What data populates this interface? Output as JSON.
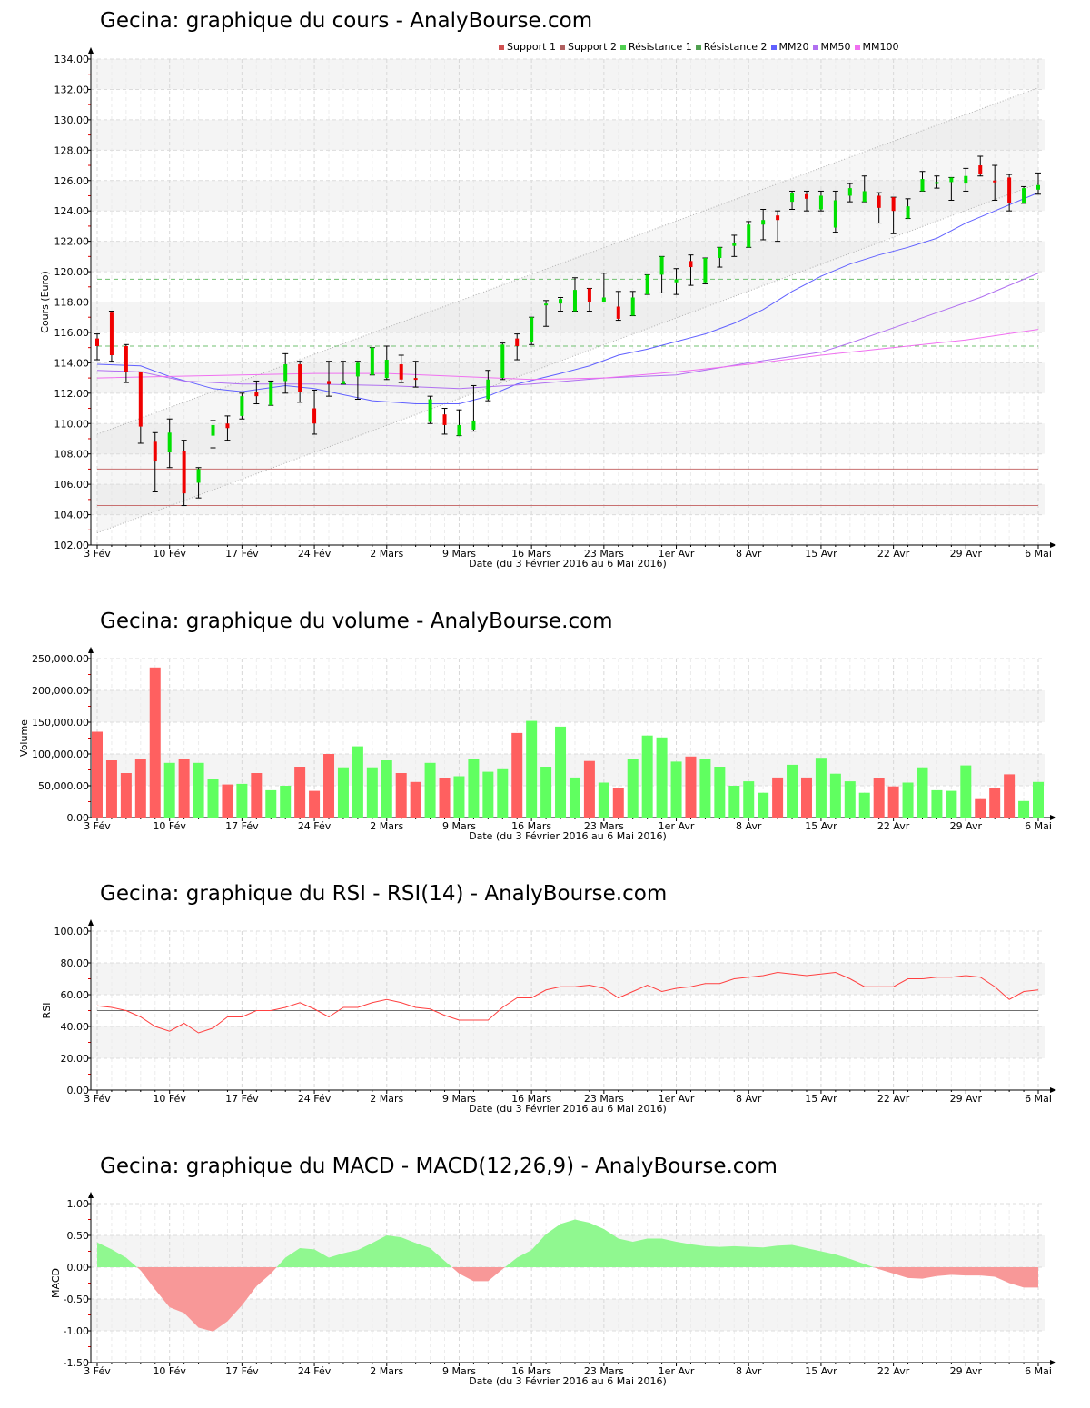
{
  "page": {
    "titles": {
      "price": "Gecina: graphique du cours - AnalyBourse.com",
      "volume": "Gecina: graphique du volume - AnalyBourse.com",
      "rsi": "Gecina: graphique du RSI - RSI(14) - AnalyBourse.com",
      "macd": "Gecina: graphique du MACD - MACD(12,26,9) - AnalyBourse.com"
    },
    "xlabel": "Date (du 3 Février 2016 au 6 Mai 2016)",
    "legend": [
      {
        "label": "Support 1",
        "color": "#d05050"
      },
      {
        "label": "Support 2",
        "color": "#b06060"
      },
      {
        "label": "Résistance 1",
        "color": "#50d050"
      },
      {
        "label": "Résistance 2",
        "color": "#50a050"
      },
      {
        "label": "MM20",
        "color": "#6060ff"
      },
      {
        "label": "MM50",
        "color": "#b070f0"
      },
      {
        "label": "MM100",
        "color": "#f070f0"
      }
    ]
  },
  "chart_data": [
    {
      "type": "candlestick",
      "title": "Gecina: graphique du cours - AnalyBourse.com",
      "xlabel": "Date (du 3 Février 2016 au 6 Mai 2016)",
      "ylabel": "Cours (Euro)",
      "ylim": [
        102,
        134
      ],
      "yticks": [
        "102.00",
        "104.00",
        "106.00",
        "108.00",
        "110.00",
        "112.00",
        "114.00",
        "116.00",
        "118.00",
        "120.00",
        "122.00",
        "124.00",
        "126.00",
        "128.00",
        "130.00",
        "132.00",
        "134.00"
      ],
      "xticks": [
        {
          "label": "3 Fév",
          "bar": 0
        },
        {
          "label": "10 Fév",
          "bar": 5
        },
        {
          "label": "17 Fév",
          "bar": 10
        },
        {
          "label": "24 Fév",
          "bar": 15
        },
        {
          "label": "2 Mars",
          "bar": 20
        },
        {
          "label": "9 Mars",
          "bar": 25
        },
        {
          "label": "16 Mars",
          "bar": 30
        },
        {
          "label": "23 Mars",
          "bar": 35
        },
        {
          "label": "1er Avr",
          "bar": 40
        },
        {
          "label": "8 Avr",
          "bar": 45
        },
        {
          "label": "15 Avr",
          "bar": 50
        },
        {
          "label": "22 Avr",
          "bar": 55
        },
        {
          "label": "29 Avr",
          "bar": 60
        },
        {
          "label": "6 Mai",
          "bar": 65
        }
      ],
      "grid": true,
      "ohlc": [
        [
          115.6,
          115.9,
          114.2,
          115.1
        ],
        [
          117.3,
          117.4,
          114.1,
          114.5
        ],
        [
          115.1,
          115.2,
          112.7,
          113.4
        ],
        [
          113.4,
          113.4,
          108.7,
          109.8
        ],
        [
          108.8,
          109.4,
          105.5,
          107.5
        ],
        [
          108.1,
          110.3,
          107.1,
          109.4
        ],
        [
          108.2,
          108.9,
          104.6,
          105.4
        ],
        [
          106.1,
          107.1,
          105.1,
          107.0
        ],
        [
          109.2,
          110.2,
          108.4,
          109.9
        ],
        [
          110.0,
          110.5,
          108.9,
          109.7
        ],
        [
          110.5,
          112.0,
          110.3,
          111.8
        ],
        [
          112.1,
          112.8,
          111.3,
          111.8
        ],
        [
          111.2,
          112.8,
          111.2,
          112.7
        ],
        [
          112.8,
          114.6,
          112.0,
          113.9
        ],
        [
          113.9,
          114.1,
          111.4,
          112.1
        ],
        [
          111.0,
          112.2,
          109.3,
          110.0
        ],
        [
          112.8,
          114.1,
          111.8,
          112.6
        ],
        [
          112.6,
          114.1,
          112.6,
          112.8
        ],
        [
          113.1,
          114.1,
          111.6,
          114.0
        ],
        [
          113.2,
          115.0,
          113.2,
          115.0
        ],
        [
          113.0,
          115.1,
          112.9,
          114.2
        ],
        [
          113.9,
          114.5,
          112.7,
          112.9
        ],
        [
          113.0,
          114.1,
          112.4,
          112.9
        ],
        [
          110.1,
          111.8,
          110.0,
          111.6
        ],
        [
          110.6,
          111.0,
          109.3,
          109.9
        ],
        [
          109.2,
          110.9,
          109.2,
          109.9
        ],
        [
          109.6,
          112.5,
          109.5,
          110.2
        ],
        [
          111.6,
          113.5,
          111.5,
          112.9
        ],
        [
          113.0,
          115.3,
          112.9,
          115.2
        ],
        [
          115.6,
          115.9,
          114.2,
          115.1
        ],
        [
          115.4,
          117.0,
          115.2,
          117.0
        ],
        [
          117.8,
          118.1,
          116.4,
          117.9
        ],
        [
          117.9,
          118.3,
          117.4,
          118.2
        ],
        [
          117.4,
          119.6,
          117.4,
          118.8
        ],
        [
          118.9,
          118.9,
          117.4,
          118.0
        ],
        [
          118.0,
          119.9,
          118.0,
          118.3
        ],
        [
          117.7,
          118.7,
          116.8,
          116.9
        ],
        [
          117.1,
          118.7,
          117.1,
          118.3
        ],
        [
          118.5,
          119.8,
          118.5,
          119.8
        ],
        [
          119.8,
          121.0,
          118.6,
          121.0
        ],
        [
          119.3,
          120.2,
          118.5,
          119.5
        ],
        [
          120.7,
          121.1,
          119.1,
          120.3
        ],
        [
          119.3,
          120.9,
          119.2,
          120.9
        ],
        [
          120.9,
          121.6,
          120.3,
          121.6
        ],
        [
          121.7,
          122.4,
          121.0,
          121.9
        ],
        [
          121.6,
          123.3,
          121.6,
          123.1
        ],
        [
          123.1,
          124.1,
          122.1,
          123.4
        ],
        [
          123.7,
          124.0,
          122.0,
          123.4
        ],
        [
          124.6,
          125.3,
          124.1,
          125.2
        ],
        [
          125.1,
          125.3,
          124.0,
          124.8
        ],
        [
          124.1,
          125.3,
          124.0,
          125.0
        ],
        [
          122.9,
          125.3,
          122.6,
          124.7
        ],
        [
          125.0,
          125.8,
          124.6,
          125.5
        ],
        [
          124.6,
          126.3,
          124.6,
          125.3
        ],
        [
          125.0,
          125.2,
          123.2,
          124.2
        ],
        [
          124.9,
          124.9,
          122.5,
          124.0
        ],
        [
          123.5,
          124.8,
          123.5,
          124.3
        ],
        [
          125.3,
          126.6,
          125.3,
          126.1
        ],
        [
          125.8,
          126.3,
          125.5,
          125.9
        ],
        [
          125.9,
          126.2,
          124.7,
          126.2
        ],
        [
          125.8,
          126.8,
          125.3,
          126.3
        ],
        [
          127.0,
          127.6,
          126.3,
          126.4
        ],
        [
          126.0,
          127.0,
          124.7,
          125.9
        ],
        [
          126.2,
          126.4,
          124.0,
          124.5
        ],
        [
          124.5,
          125.6,
          124.5,
          125.5
        ],
        [
          125.4,
          126.5,
          125.1,
          125.7
        ]
      ],
      "lines": {
        "support_1": 107.0,
        "support_2": 104.6,
        "resistance_1": 115.1,
        "resistance_2": 119.5
      },
      "channel": {
        "upper": [
          109.3,
          132.1
        ],
        "lower": [
          102.8,
          125.8
        ]
      },
      "series": [
        {
          "name": "MM20",
          "color": "#6060ff",
          "points": [
            [
              0,
              113.9
            ],
            [
              3,
              113.8
            ],
            [
              5,
              113.1
            ],
            [
              8,
              112.3
            ],
            [
              10,
              112.1
            ],
            [
              13,
              112.5
            ],
            [
              15,
              112.3
            ],
            [
              17,
              111.9
            ],
            [
              19,
              111.5
            ],
            [
              22,
              111.3
            ],
            [
              25,
              111.3
            ],
            [
              27,
              111.8
            ],
            [
              29,
              112.6
            ],
            [
              32,
              113.3
            ],
            [
              34,
              113.8
            ],
            [
              36,
              114.5
            ],
            [
              38,
              114.9
            ],
            [
              40,
              115.4
            ],
            [
              42,
              115.9
            ],
            [
              44,
              116.6
            ],
            [
              46,
              117.5
            ],
            [
              48,
              118.7
            ],
            [
              50,
              119.7
            ],
            [
              52,
              120.5
            ],
            [
              54,
              121.1
            ],
            [
              56,
              121.6
            ],
            [
              58,
              122.2
            ],
            [
              60,
              123.2
            ],
            [
              62,
              124.0
            ],
            [
              65,
              125.2
            ]
          ]
        },
        {
          "name": "MM50",
          "color": "#b070f0",
          "points": [
            [
              0,
              113.5
            ],
            [
              3,
              113.4
            ],
            [
              6,
              112.8
            ],
            [
              10,
              112.6
            ],
            [
              15,
              112.6
            ],
            [
              20,
              112.5
            ],
            [
              25,
              112.3
            ],
            [
              30,
              112.6
            ],
            [
              35,
              113.0
            ],
            [
              40,
              113.2
            ],
            [
              45,
              114.0
            ],
            [
              50,
              114.7
            ],
            [
              52,
              115.3
            ],
            [
              55,
              116.3
            ],
            [
              58,
              117.3
            ],
            [
              61,
              118.3
            ],
            [
              65,
              119.9
            ]
          ]
        },
        {
          "name": "MM100",
          "color": "#f070f0",
          "points": [
            [
              0,
              113.0
            ],
            [
              5,
              113.1
            ],
            [
              10,
              113.2
            ],
            [
              15,
              113.3
            ],
            [
              20,
              113.3
            ],
            [
              25,
              113.1
            ],
            [
              30,
              112.9
            ],
            [
              35,
              113.0
            ],
            [
              40,
              113.4
            ],
            [
              45,
              113.9
            ],
            [
              50,
              114.5
            ],
            [
              55,
              115.0
            ],
            [
              60,
              115.5
            ],
            [
              65,
              116.2
            ]
          ]
        }
      ],
      "legend": [
        "Support 1",
        "Support 2",
        "Résistance 1",
        "Résistance 2",
        "MM20",
        "MM50",
        "MM100"
      ]
    },
    {
      "type": "bar",
      "title": "Gecina: graphique du volume - AnalyBourse.com",
      "xlabel": "Date (du 3 Février 2016 au 6 Mai 2016)",
      "ylabel": "Volume",
      "ylim": [
        0,
        250000
      ],
      "yticks": [
        "0.00",
        "50,000.00",
        "100,000.00",
        "150,000.00",
        "200,000.00",
        "250,000.00"
      ],
      "values": [
        135000,
        90000,
        70000,
        92000,
        236000,
        86000,
        92000,
        86000,
        60000,
        52000,
        53000,
        70000,
        43000,
        50000,
        80000,
        42000,
        100000,
        79000,
        112000,
        79000,
        90000,
        70000,
        56000,
        86000,
        62000,
        65000,
        92000,
        72000,
        76000,
        133000,
        152000,
        80000,
        143000,
        63000,
        89000,
        55000,
        46000,
        92000,
        129000,
        126000,
        88000,
        96000,
        92000,
        80000,
        50000,
        57000,
        39000,
        63000,
        83000,
        63000,
        94000,
        69000,
        57000,
        39000,
        62000,
        49000,
        55000,
        79000,
        43000,
        42000,
        82000,
        29000,
        47000,
        68000,
        26000,
        56000
      ],
      "colors": "RRRRRGRGGRGRGGRRRGGGGRRGRGGGGRGGGGRGRGGGGRGGGGGRGRGGGGRRGGGGGRRRGG"
    },
    {
      "type": "line",
      "title": "Gecina: graphique du RSI - RSI(14) - AnalyBourse.com",
      "xlabel": "Date (du 3 Février 2016 au 6 Mai 2016)",
      "ylabel": "RSI",
      "ylim": [
        0,
        100
      ],
      "yticks": [
        "0.00",
        "20.00",
        "40.00",
        "60.00",
        "80.00",
        "100.00"
      ],
      "reference_line": 50,
      "values": [
        53,
        52,
        50,
        46,
        40,
        37,
        42,
        36,
        39,
        46,
        46,
        50,
        50,
        52,
        55,
        51,
        46,
        52,
        52,
        55,
        57,
        55,
        52,
        51,
        47,
        44,
        44,
        44,
        52,
        58,
        58,
        63,
        65,
        65,
        66,
        64,
        58,
        62,
        66,
        62,
        64,
        65,
        67,
        67,
        70,
        71,
        72,
        74,
        73,
        72,
        73,
        74,
        70,
        65,
        65,
        65,
        70,
        70,
        71,
        71,
        72,
        71,
        65,
        57,
        62,
        63
      ],
      "color": "#ff4040"
    },
    {
      "type": "area",
      "title": "Gecina: graphique du MACD - MACD(12,26,9) - AnalyBourse.com",
      "xlabel": "Date (du 3 Février 2016 au 6 Mai 2016)",
      "ylabel": "MACD",
      "ylim": [
        -1.5,
        1.0
      ],
      "yticks": [
        "-1.50",
        "-1.00",
        "-0.50",
        "0.00",
        "0.50",
        "1.00"
      ],
      "values": [
        0.39,
        0.28,
        0.15,
        -0.05,
        -0.35,
        -0.63,
        -0.72,
        -0.95,
        -1.01,
        -0.85,
        -0.6,
        -0.3,
        -0.1,
        0.15,
        0.3,
        0.28,
        0.15,
        0.22,
        0.27,
        0.38,
        0.5,
        0.47,
        0.38,
        0.3,
        0.1,
        -0.1,
        -0.22,
        -0.22,
        -0.03,
        0.15,
        0.27,
        0.52,
        0.68,
        0.75,
        0.7,
        0.6,
        0.45,
        0.4,
        0.45,
        0.45,
        0.4,
        0.36,
        0.33,
        0.32,
        0.33,
        0.32,
        0.31,
        0.34,
        0.35,
        0.3,
        0.25,
        0.2,
        0.13,
        0.05,
        -0.03,
        -0.1,
        -0.17,
        -0.18,
        -0.14,
        -0.12,
        -0.13,
        -0.13,
        -0.15,
        -0.25,
        -0.32,
        -0.32
      ],
      "pos_color": "#90f890",
      "neg_color": "#f89898"
    }
  ]
}
